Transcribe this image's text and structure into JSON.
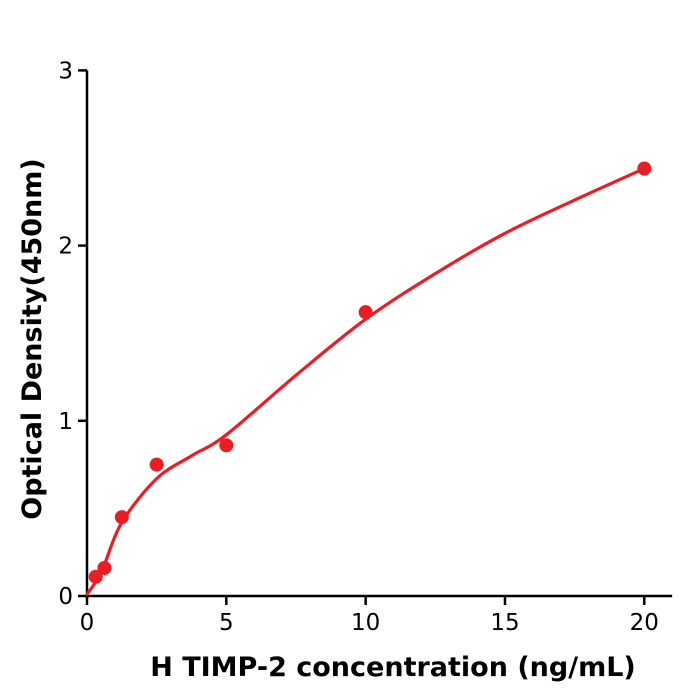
{
  "figure": {
    "background": "#ffffff"
  },
  "colors": {
    "accent": "#ed1c24",
    "axis": "#000000",
    "background": "#ffffff"
  },
  "chart_data": {
    "type": "scatter",
    "title": "",
    "xlabel": "H  TIMP-2 concentration (ng/mL)",
    "ylabel": "Optical Density(450nm)",
    "xlim": [
      0,
      21
    ],
    "ylim": [
      0,
      3
    ],
    "x_ticks": [
      0,
      5,
      10,
      15,
      20
    ],
    "y_ticks": [
      0,
      1,
      2,
      3
    ],
    "grid": false,
    "legend": "none",
    "point_color": "#ed1c24",
    "line_color": "#ed1c24",
    "series": [
      {
        "name": "standard-data-points",
        "type": "scatter",
        "color": "#ed1c24",
        "x": [
          0.313,
          0.625,
          1.25,
          2.5,
          5,
          10,
          20
        ],
        "y": [
          0.11,
          0.16,
          0.45,
          0.75,
          0.86,
          1.62,
          2.44
        ]
      },
      {
        "name": "fit-curve",
        "type": "line",
        "color": "#ed1c24",
        "x": [
          0,
          0.31,
          0.625,
          1.25,
          2.5,
          3.75,
          5,
          7.5,
          10,
          12.5,
          15,
          17.5,
          20
        ],
        "y": [
          0.01,
          0.08,
          0.18,
          0.42,
          0.67,
          0.8,
          0.92,
          1.26,
          1.58,
          1.84,
          2.07,
          2.26,
          2.44
        ]
      }
    ]
  }
}
